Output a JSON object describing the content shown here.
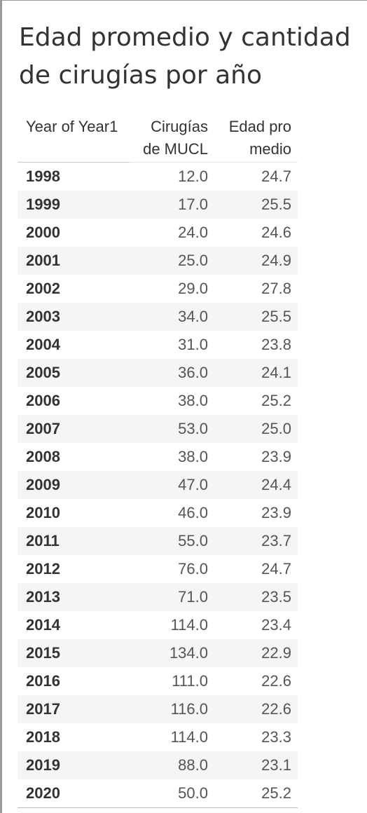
{
  "title": "Edad promedio y cantidad de cirugías por año",
  "colors": {
    "text": "#333333",
    "alt_row": "#f5f5f5",
    "border": "#9a9a9a"
  },
  "chart_data": {
    "type": "table",
    "title": "Edad promedio y cantidad de cirugías por año",
    "columns": [
      "Year of Year1",
      "Cirugías de MUCL",
      "Edad pro medio"
    ],
    "rows": [
      [
        "1998",
        "12.0",
        "24.7"
      ],
      [
        "1999",
        "17.0",
        "25.5"
      ],
      [
        "2000",
        "24.0",
        "24.6"
      ],
      [
        "2001",
        "25.0",
        "24.9"
      ],
      [
        "2002",
        "29.0",
        "27.8"
      ],
      [
        "2003",
        "34.0",
        "25.5"
      ],
      [
        "2004",
        "31.0",
        "23.8"
      ],
      [
        "2005",
        "36.0",
        "24.1"
      ],
      [
        "2006",
        "38.0",
        "25.2"
      ],
      [
        "2007",
        "53.0",
        "25.0"
      ],
      [
        "2008",
        "38.0",
        "23.9"
      ],
      [
        "2009",
        "47.0",
        "24.4"
      ],
      [
        "2010",
        "46.0",
        "23.9"
      ],
      [
        "2011",
        "55.0",
        "23.7"
      ],
      [
        "2012",
        "76.0",
        "24.7"
      ],
      [
        "2013",
        "71.0",
        "23.5"
      ],
      [
        "2014",
        "114.0",
        "23.4"
      ],
      [
        "2015",
        "134.0",
        "22.9"
      ],
      [
        "2016",
        "111.0",
        "22.6"
      ],
      [
        "2017",
        "116.0",
        "22.6"
      ],
      [
        "2018",
        "114.0",
        "23.3"
      ],
      [
        "2019",
        "88.0",
        "23.1"
      ],
      [
        "2020",
        "50.0",
        "25.2"
      ]
    ]
  }
}
